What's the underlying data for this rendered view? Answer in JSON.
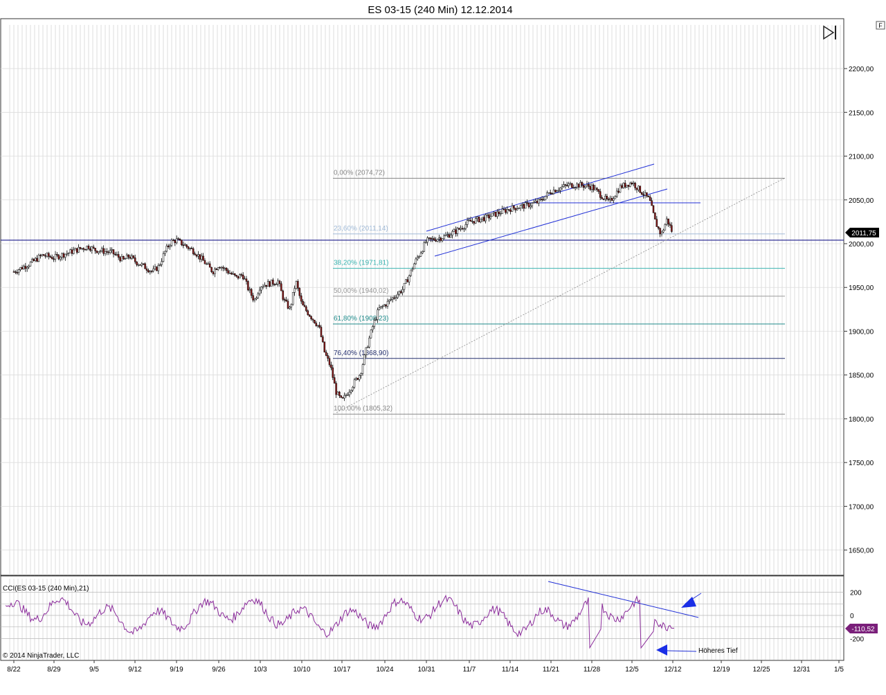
{
  "window": {
    "title": "ES 03-15 (240 Min)  12.12.2014",
    "corner_button": "F",
    "copyright": "© 2014 NinjaTrader, LLC",
    "scroll_icon": "skip-to-end-icon"
  },
  "chart_data": {
    "type": "candlestick",
    "instrument": "ES 03-15",
    "interval": "240 Min",
    "date": "12.12.2014",
    "x_ticks": [
      "8/22",
      "8/29",
      "9/5",
      "9/12",
      "9/19",
      "9/26",
      "10/3",
      "10/10",
      "10/17",
      "10/24",
      "10/31",
      "11/7",
      "11/14",
      "11/21",
      "11/28",
      "12/5",
      "12/12",
      "12/19",
      "12/25",
      "12/31",
      "1/5"
    ],
    "y_ticks": [
      "2200,00",
      "2150,00",
      "2100,00",
      "2050,00",
      "2000,00",
      "1950,00",
      "1900,00",
      "1850,00",
      "1800,00",
      "1750,00",
      "1700,00",
      "1650,00"
    ],
    "y_values": [
      2200,
      2150,
      2100,
      2050,
      2000,
      1950,
      1900,
      1850,
      1800,
      1750,
      1700,
      1650
    ],
    "last_price_label": "2011,75",
    "last_price": 2011.75,
    "horizontal_line": 2004,
    "price_path": [
      [
        "8/22",
        1968
      ],
      [
        "8/25",
        1978
      ],
      [
        "8/27",
        1987
      ],
      [
        "8/29",
        1984
      ],
      [
        "9/2",
        1993
      ],
      [
        "9/4",
        1997
      ],
      [
        "9/5",
        1993
      ],
      [
        "9/8",
        1990
      ],
      [
        "9/10",
        1981
      ],
      [
        "9/11",
        1986
      ],
      [
        "9/12",
        1980
      ],
      [
        "9/15",
        1968
      ],
      [
        "9/16",
        1974
      ],
      [
        "9/17",
        1990
      ],
      [
        "9/18",
        2002
      ],
      [
        "9/19",
        2004
      ],
      [
        "9/22",
        1991
      ],
      [
        "9/24",
        1976
      ],
      [
        "9/25",
        1968
      ],
      [
        "9/26",
        1976
      ],
      [
        "9/29",
        1961
      ],
      [
        "9/30",
        1965
      ],
      [
        "10/1",
        1948
      ],
      [
        "10/2",
        1935
      ],
      [
        "10/3",
        1952
      ],
      [
        "10/6",
        1957
      ],
      [
        "10/7",
        1935
      ],
      [
        "10/8",
        1925
      ],
      [
        "10/9",
        1957
      ],
      [
        "10/10",
        1930
      ],
      [
        "10/13",
        1905
      ],
      [
        "10/14",
        1875
      ],
      [
        "10/15",
        1860
      ],
      [
        "10/16",
        1830
      ],
      [
        "10/17",
        1820
      ],
      [
        "10/20",
        1852
      ],
      [
        "10/21",
        1880
      ],
      [
        "10/22",
        1905
      ],
      [
        "10/23",
        1925
      ],
      [
        "10/24",
        1930
      ],
      [
        "10/27",
        1948
      ],
      [
        "10/28",
        1962
      ],
      [
        "10/29",
        1978
      ],
      [
        "10/30",
        1990
      ],
      [
        "10/31",
        2003
      ],
      [
        "11/3",
        2008
      ],
      [
        "11/5",
        2015
      ],
      [
        "11/7",
        2025
      ],
      [
        "11/10",
        2030
      ],
      [
        "11/12",
        2035
      ],
      [
        "11/14",
        2040
      ],
      [
        "11/17",
        2044
      ],
      [
        "11/19",
        2048
      ],
      [
        "11/21",
        2060
      ],
      [
        "11/24",
        2067
      ],
      [
        "11/26",
        2067
      ],
      [
        "11/28",
        2065
      ],
      [
        "12/1",
        2047
      ],
      [
        "12/3",
        2065
      ],
      [
        "12/5",
        2070
      ],
      [
        "12/8",
        2050
      ],
      [
        "12/9",
        2025
      ],
      [
        "12/10",
        2010
      ],
      [
        "12/11",
        2028
      ],
      [
        "12/12",
        2011.75
      ]
    ],
    "fibonacci": {
      "levels": [
        {
          "label": "0,00% (2074,72)",
          "value": 2074.72,
          "color": "#888888"
        },
        {
          "label": "23,60% (2011,14)",
          "value": 2011.14,
          "color": "#9fb9d6"
        },
        {
          "label": "38,20% (1971,81)",
          "value": 1971.81,
          "color": "#39b3b0"
        },
        {
          "label": "50,00% (1940,02)",
          "value": 1940.02,
          "color": "#999999"
        },
        {
          "label": "61,80% (1908,23)",
          "value": 1908.23,
          "color": "#1e8a8a"
        },
        {
          "label": "76,40% (1868,90)",
          "value": 1868.9,
          "color": "#232e6d"
        },
        {
          "label": "100,00% (1805,32)",
          "value": 1805.32,
          "color": "#888888"
        }
      ]
    },
    "indicator": {
      "label": "CCI(ES 03-15 (240 Min),21)",
      "y_ticks": [
        "200",
        "0",
        "-200"
      ],
      "y_values": [
        200,
        0,
        -200
      ],
      "value_label": "-110,52",
      "value": -110.52,
      "annotation": "Höheres Tief"
    },
    "colors": {
      "up_candle": "#ffffff",
      "down_candle": "#8b1a1a",
      "price_line": "#1a1a8a",
      "channel": "#1f2ed6",
      "cci_line": "#8a2a9a",
      "cci_label_bg": "#7a1f7a",
      "price_label_bg": "#000000",
      "grid": "#c8c8c8"
    }
  }
}
